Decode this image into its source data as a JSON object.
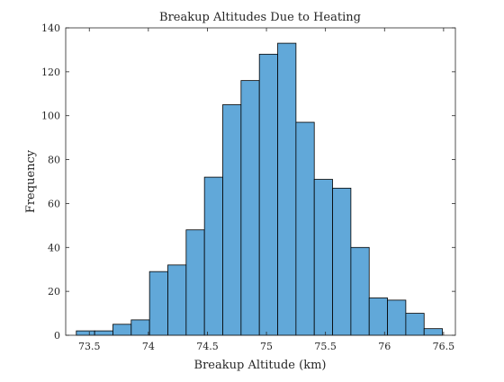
{
  "chart_data": {
    "type": "bar",
    "title": "Breakup Altitudes Due to Heating",
    "xlabel": "Breakup Altitude (km)",
    "ylabel": "Frequency",
    "xlim": [
      73.3,
      76.6
    ],
    "ylim": [
      0,
      140
    ],
    "x_ticks": [
      73.5,
      74,
      74.5,
      75,
      75.5,
      76,
      76.5
    ],
    "y_ticks": [
      0,
      20,
      40,
      60,
      80,
      100,
      120,
      140
    ],
    "bin_width": 0.155,
    "bins": [
      {
        "x0": 73.39,
        "value": 2
      },
      {
        "x0": 73.545,
        "value": 2
      },
      {
        "x0": 73.7,
        "value": 5
      },
      {
        "x0": 73.855,
        "value": 7
      },
      {
        "x0": 74.01,
        "value": 29
      },
      {
        "x0": 74.165,
        "value": 32
      },
      {
        "x0": 74.32,
        "value": 48
      },
      {
        "x0": 74.475,
        "value": 72
      },
      {
        "x0": 74.63,
        "value": 105
      },
      {
        "x0": 74.785,
        "value": 116
      },
      {
        "x0": 74.94,
        "value": 128
      },
      {
        "x0": 75.095,
        "value": 133
      },
      {
        "x0": 75.25,
        "value": 97
      },
      {
        "x0": 75.405,
        "value": 71
      },
      {
        "x0": 75.56,
        "value": 67
      },
      {
        "x0": 75.715,
        "value": 40
      },
      {
        "x0": 75.87,
        "value": 17
      },
      {
        "x0": 76.025,
        "value": 16
      },
      {
        "x0": 76.18,
        "value": 10
      },
      {
        "x0": 76.335,
        "value": 3
      }
    ],
    "grid": false,
    "bar_color": "#61a8d9",
    "edge_color": "#000000"
  }
}
